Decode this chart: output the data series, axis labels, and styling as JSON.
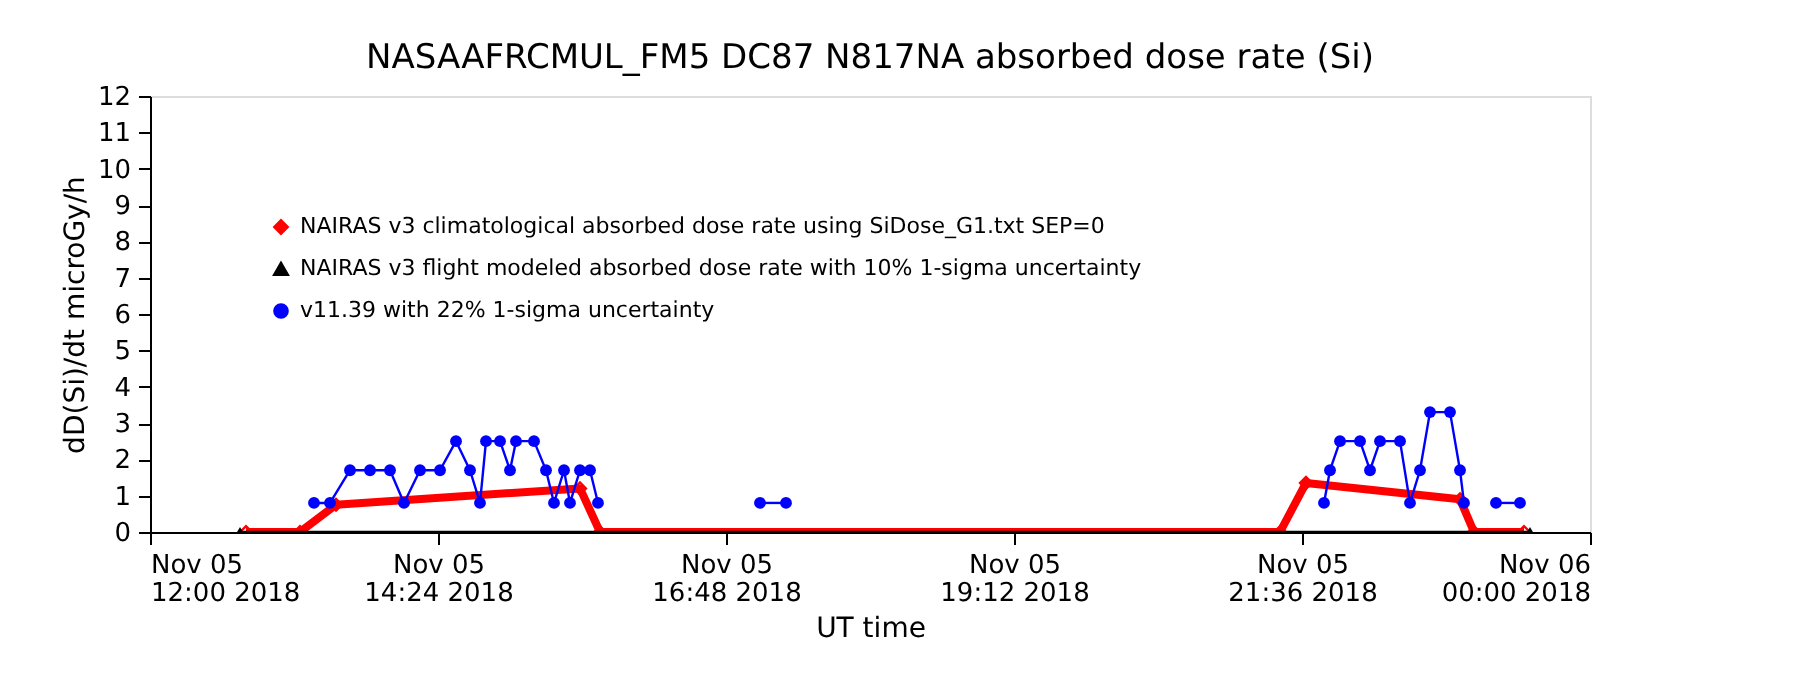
{
  "chart_data": {
    "type": "line",
    "title": "NASAAFRCMUL_FM5 DC87 N817NA absorbed dose rate (Si)",
    "xlabel": "UT time",
    "ylabel": "dD(Si)/dt microGy/h",
    "xlim": [
      "2018-11-05T12:00",
      "2018-11-06T00:00"
    ],
    "xticks": [
      {
        "value": "2018-11-05T12:00",
        "label": "Nov 05\n12:00 2018"
      },
      {
        "value": "2018-11-05T14:24",
        "label": "Nov 05\n14:24 2018"
      },
      {
        "value": "2018-11-05T16:48",
        "label": "Nov 05\n16:48 2018"
      },
      {
        "value": "2018-11-05T19:12",
        "label": "Nov 05\n19:12 2018"
      },
      {
        "value": "2018-11-05T21:36",
        "label": "Nov 05\n21:36 2018"
      },
      {
        "value": "2018-11-06T00:00",
        "label": "Nov 06\n00:00 2018"
      }
    ],
    "ylim": [
      0,
      12
    ],
    "yticks": [
      0,
      1,
      2,
      3,
      4,
      5,
      6,
      7,
      8,
      9,
      10,
      11,
      12
    ],
    "grid": false,
    "legend": "top left",
    "series": [
      {
        "name": "NAIRAS v3 climatological absorbed dose rate using SiDose_G1.txt SEP=0",
        "color": "#ff0000",
        "marker": "diamond",
        "x": [
          "2018-11-05T12:48",
          "2018-11-05T13:15",
          "2018-11-05T13:33",
          "2018-11-05T15:35",
          "2018-11-05T15:45",
          "2018-11-05T21:25",
          "2018-11-05T21:38",
          "2018-11-05T22:55",
          "2018-11-05T23:02",
          "2018-11-05T23:27"
        ],
        "values": [
          0,
          0,
          0.75,
          1.2,
          0,
          0,
          1.35,
          0.9,
          0,
          0
        ]
      },
      {
        "name": "NAIRAS v3 flight modeled absorbed dose rate with 10% 1-sigma uncertainty",
        "color": "#000000",
        "marker": "triangle",
        "x": [
          "2018-11-05T12:45",
          "2018-11-05T23:30"
        ],
        "values": [
          0,
          0
        ]
      },
      {
        "name": "v11.39 with 22% 1-sigma uncertainty",
        "color": "#0000ff",
        "marker": "circle",
        "x": [
          "2018-11-05T13:22",
          "2018-11-05T13:30",
          "2018-11-05T13:40",
          "2018-11-05T13:50",
          "2018-11-05T14:00",
          "2018-11-05T14:07",
          "2018-11-05T14:15",
          "2018-11-05T14:25",
          "2018-11-05T14:33",
          "2018-11-05T14:40",
          "2018-11-05T14:45",
          "2018-11-05T14:48",
          "2018-11-05T14:55",
          "2018-11-05T15:00",
          "2018-11-05T15:03",
          "2018-11-05T15:12",
          "2018-11-05T15:18",
          "2018-11-05T15:22",
          "2018-11-05T15:27",
          "2018-11-05T15:30",
          "2018-11-05T15:35",
          "2018-11-05T15:40",
          "2018-11-05T15:44",
          "2018-11-05T16:00",
          "2018-11-05T17:05",
          "2018-11-05T17:18",
          "2018-11-05T19:00",
          "2018-11-05T21:47",
          "2018-11-05T21:50",
          "2018-11-05T21:55",
          "2018-11-05T22:05",
          "2018-11-05T22:10",
          "2018-11-05T22:15",
          "2018-11-05T22:25",
          "2018-11-05T22:30",
          "2018-11-05T22:35",
          "2018-11-05T22:40",
          "2018-11-05T22:50",
          "2018-11-05T22:55",
          "2018-11-05T22:57",
          "2018-11-05T23:05",
          "2018-11-05T23:13",
          "2018-11-05T23:25"
        ],
        "values": [
          0.8,
          0.8,
          1.7,
          1.7,
          1.7,
          0.8,
          1.7,
          1.7,
          2.5,
          1.7,
          0.8,
          2.5,
          2.5,
          1.7,
          2.5,
          2.5,
          1.7,
          0.8,
          1.7,
          0.8,
          1.7,
          1.7,
          0.8,
          null,
          0.8,
          0.8,
          null,
          0.8,
          1.7,
          2.5,
          2.5,
          1.7,
          2.5,
          2.5,
          0.8,
          1.7,
          3.3,
          3.3,
          1.7,
          0.8,
          null,
          0.8,
          0.8
        ]
      }
    ]
  }
}
